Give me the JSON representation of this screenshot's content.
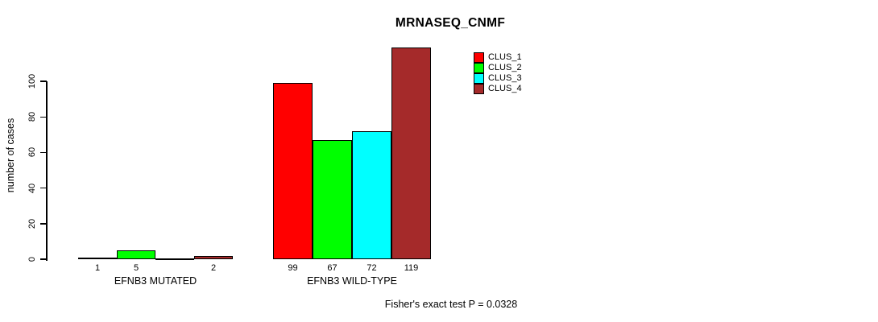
{
  "title": "MRNASEQ_CNMF",
  "footer": "Fisher's exact test P = 0.0328",
  "y_axis": {
    "label": "number of cases",
    "ticks": [
      0,
      20,
      40,
      60,
      80,
      100
    ]
  },
  "chart_data": {
    "type": "bar",
    "title": "MRNASEQ_CNMF",
    "xlabel": "",
    "ylabel": "number of cases",
    "ylim": [
      0,
      100
    ],
    "grid": false,
    "legend_position": "top-right",
    "categories": [
      "EFNB3 MUTATED",
      "EFNB3 WILD-TYPE"
    ],
    "series": [
      {
        "name": "CLUS_1",
        "color": "#FF0000",
        "values": [
          1,
          99
        ]
      },
      {
        "name": "CLUS_2",
        "color": "#00FF00",
        "values": [
          5,
          67
        ]
      },
      {
        "name": "CLUS_3",
        "color": "#00FFFF",
        "values": [
          0,
          72
        ]
      },
      {
        "name": "CLUS_4",
        "color": "#A52A2A",
        "values": [
          2,
          119
        ]
      }
    ],
    "bar_value_labels": {
      "shown": true,
      "zero_values_hidden": true
    },
    "annotation": "Fisher's exact test P = 0.0328"
  },
  "colors": {
    "background": "#FFFFFF",
    "axis": "#000000",
    "text": "#000000"
  }
}
